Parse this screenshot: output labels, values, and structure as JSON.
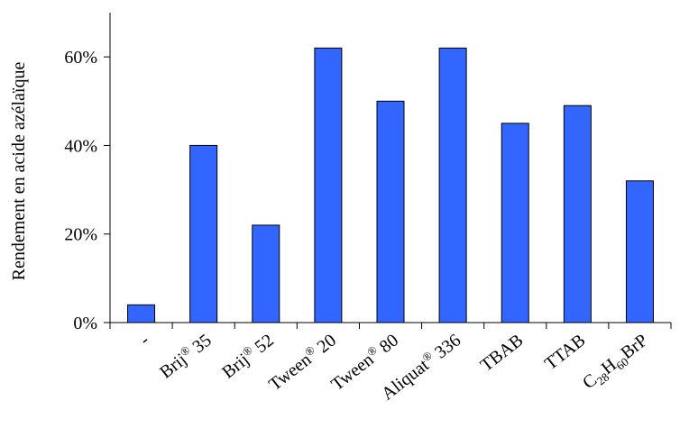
{
  "chart_data": {
    "type": "bar",
    "title": "",
    "xlabel": "",
    "ylabel": "Rendement en acide azélaïque",
    "categories": [
      "-",
      "Brij® 35",
      "Brij® 52",
      "Tween® 20",
      "Tween® 80",
      "Aliquat® 336",
      "TBAB",
      "TTAB",
      "C28H60BrP"
    ],
    "category_parts": [
      [
        {
          "t": "-",
          "s": "n"
        }
      ],
      [
        {
          "t": "Brij",
          "s": "n"
        },
        {
          "t": "®",
          "s": "sup"
        },
        {
          "t": " 35",
          "s": "n"
        }
      ],
      [
        {
          "t": "Brij",
          "s": "n"
        },
        {
          "t": "®",
          "s": "sup"
        },
        {
          "t": " 52",
          "s": "n"
        }
      ],
      [
        {
          "t": "Tween",
          "s": "n"
        },
        {
          "t": "®",
          "s": "sup"
        },
        {
          "t": " 20",
          "s": "n"
        }
      ],
      [
        {
          "t": "Tween",
          "s": "n"
        },
        {
          "t": "®",
          "s": "sup"
        },
        {
          "t": " 80",
          "s": "n"
        }
      ],
      [
        {
          "t": "Aliquat",
          "s": "n"
        },
        {
          "t": "®",
          "s": "sup"
        },
        {
          "t": " 336",
          "s": "n"
        }
      ],
      [
        {
          "t": "TBAB",
          "s": "n"
        }
      ],
      [
        {
          "t": "TTAB",
          "s": "n"
        }
      ],
      [
        {
          "t": "C",
          "s": "n"
        },
        {
          "t": "28",
          "s": "sub"
        },
        {
          "t": "H",
          "s": "n"
        },
        {
          "t": "60",
          "s": "sub"
        },
        {
          "t": "BrP",
          "s": "n"
        }
      ]
    ],
    "values": [
      4,
      40,
      22,
      62,
      50,
      62,
      45,
      49,
      32
    ],
    "value_unit": "%",
    "ylim": [
      0,
      70
    ],
    "yticks": [
      0,
      20,
      40,
      60
    ],
    "ytick_labels": [
      "0%",
      "20%",
      "40%",
      "60%"
    ],
    "grid": false,
    "legend": "none",
    "colors": {
      "bar_fill": "#3366FF",
      "bar_stroke": "#000000",
      "axis": "#000000"
    }
  }
}
